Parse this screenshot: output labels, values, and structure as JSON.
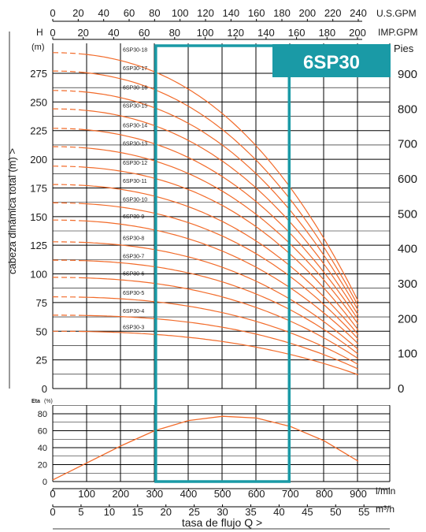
{
  "title": "6SP30",
  "colors": {
    "curve": "#f26b2a",
    "highlight": "#1a9aa6",
    "grid": "#000000",
    "text": "#1a1a1a"
  },
  "axes": {
    "usgpm_unit": "U.S.GPM",
    "usgpm_ticks": [
      "0",
      "20",
      "40",
      "60",
      "80",
      "100",
      "120",
      "140",
      "160",
      "180",
      "200",
      "220",
      "240"
    ],
    "impgpm_unit": "IMP.GPM",
    "impgpm_ticks": [
      "0",
      "20",
      "40",
      "60",
      "80",
      "100",
      "120",
      "140",
      "160",
      "180",
      "200"
    ],
    "h_label": "H",
    "h_unit": "(m)",
    "y_label": "cabeza dinámica total (m) >",
    "y_ticks": [
      "0",
      "25",
      "50",
      "75",
      "100",
      "125",
      "150",
      "175",
      "200",
      "225",
      "250",
      "275"
    ],
    "feet_label": "Pies",
    "feet_ticks": [
      "0",
      "100",
      "200",
      "300",
      "400",
      "500",
      "600",
      "700",
      "800",
      "900"
    ],
    "eta_label": "Eta",
    "eta_unit": "(%)",
    "eta_ticks": [
      "0",
      "20",
      "40",
      "60",
      "80"
    ],
    "lmin_unit": "l/min",
    "lmin_ticks": [
      "0",
      "100",
      "200",
      "300",
      "400",
      "500",
      "600",
      "700",
      "800",
      "900"
    ],
    "m3h_unit": "m³/h",
    "m3h_ticks": [
      "0",
      "5",
      "10",
      "15",
      "20",
      "25",
      "30",
      "35",
      "40",
      "45",
      "50",
      "55"
    ],
    "x_label": "tasa de flujo Q >"
  },
  "chart_data": {
    "type": "line",
    "title": "6SP30",
    "xlabel": "tasa de flujo Q >",
    "ylabel": "cabeza dinámica total (m) >",
    "x_unit": "l/min",
    "xlim": [
      0,
      960
    ],
    "ylim": [
      0,
      280
    ],
    "recommended_range_lmin": [
      300,
      700
    ],
    "series": [
      {
        "name": "6SP30-3",
        "shutoff": 50,
        "at300": 48,
        "at900": 12
      },
      {
        "name": "6SP30-4",
        "shutoff": 64,
        "at300": 62,
        "at900": 17
      },
      {
        "name": "6SP30-5",
        "shutoff": 80,
        "at300": 77,
        "at900": 21
      },
      {
        "name": "6SP30-6",
        "shutoff": 97,
        "at300": 93,
        "at900": 26
      },
      {
        "name": "6SP30-7",
        "shutoff": 112,
        "at300": 108,
        "at900": 30
      },
      {
        "name": "6SP30-8",
        "shutoff": 128,
        "at300": 123,
        "at900": 34
      },
      {
        "name": "6SP30-9",
        "shutoff": 147,
        "at300": 140,
        "at900": 39
      },
      {
        "name": "6SP30-10",
        "shutoff": 162,
        "at300": 155,
        "at900": 43
      },
      {
        "name": "6SP30-11",
        "shutoff": 178,
        "at300": 170,
        "at900": 47
      },
      {
        "name": "6SP30-12",
        "shutoff": 194,
        "at300": 186,
        "at900": 51
      },
      {
        "name": "6SP30-13",
        "shutoff": 211,
        "at300": 201,
        "at900": 56
      },
      {
        "name": "6SP30-14",
        "shutoff": 227,
        "at300": 216,
        "at900": 60
      },
      {
        "name": "6SP30-15",
        "shutoff": 244,
        "at300": 232,
        "at900": 64
      },
      {
        "name": "6SP30-16",
        "shutoff": 260,
        "at300": 248,
        "at900": 68
      },
      {
        "name": "6SP30-17",
        "shutoff": 277,
        "at300": 264,
        "at900": 72
      },
      {
        "name": "6SP30-18",
        "shutoff": 293,
        "at300": 280,
        "at900": 76
      }
    ],
    "efficiency": {
      "name": "Eta",
      "x": [
        0,
        100,
        200,
        300,
        400,
        500,
        600,
        700,
        800,
        900
      ],
      "y": [
        2,
        22,
        42,
        60,
        72,
        77,
        75,
        65,
        48,
        24
      ]
    }
  }
}
